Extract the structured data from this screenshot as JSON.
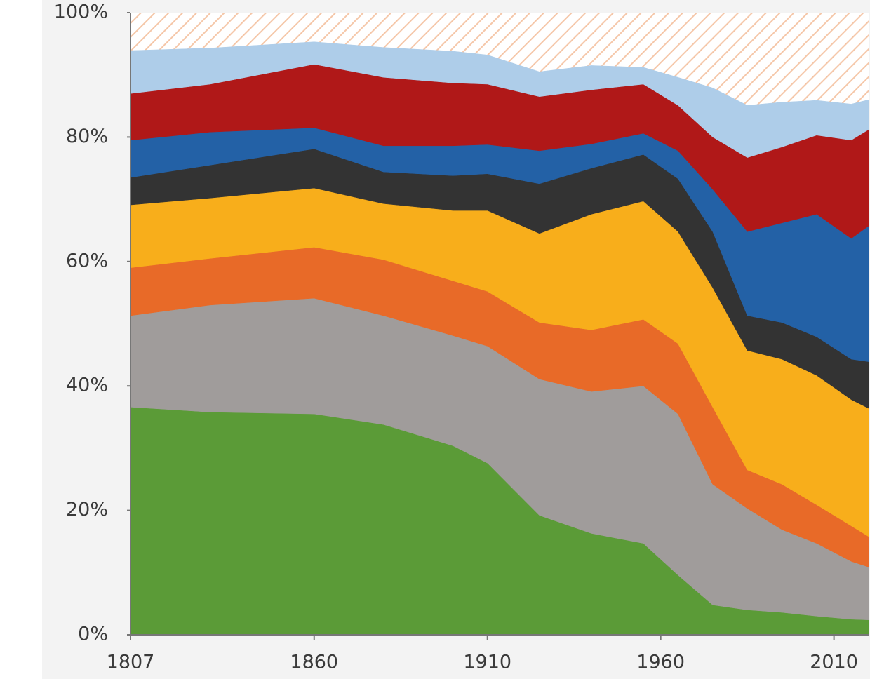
{
  "chart_data": {
    "type": "stacked-area",
    "x": [
      1807,
      1830,
      1860,
      1880,
      1900,
      1910,
      1925,
      1940,
      1955,
      1965,
      1975,
      1985,
      1995,
      2005,
      2015,
      2020
    ],
    "series": [
      {
        "color": "#5b9b37",
        "values": [
          36.6,
          35.8,
          35.5,
          33.8,
          30.4,
          27.6,
          19.2,
          16.3,
          14.7,
          9.6,
          4.8,
          4,
          3.6,
          3,
          2.5,
          2.4
        ]
      },
      {
        "color": "#a09c9b",
        "values": [
          14.7,
          17.2,
          18.6,
          17.5,
          17.7,
          18.8,
          21.9,
          22.8,
          25.3,
          25.9,
          19.4,
          16.3,
          13.3,
          11.7,
          9.3,
          8.5
        ]
      },
      {
        "color": "#e86a28",
        "values": [
          7.7,
          7.5,
          8.2,
          9.0,
          8.8,
          8.8,
          9.1,
          9.9,
          10.7,
          11.3,
          12.4,
          6.2,
          7.3,
          6.2,
          5.7,
          4.9
        ]
      },
      {
        "color": "#f8ae1b",
        "values": [
          10.1,
          9.7,
          9.5,
          9.0,
          11.3,
          13.0,
          14.3,
          18.6,
          19.0,
          18.0,
          19.2,
          19.2,
          20.1,
          20.8,
          20.3,
          20.6
        ]
      },
      {
        "color": "#333333",
        "values": [
          4.4,
          5.3,
          6.3,
          5.1,
          5.6,
          5.9,
          8.0,
          7.4,
          7.5,
          8.5,
          9.0,
          5.6,
          5.9,
          6.2,
          6.5,
          7.5
        ]
      },
      {
        "color": "#2361a6",
        "values": [
          6.0,
          5.3,
          3.4,
          4.2,
          4.8,
          4.7,
          5.3,
          3.9,
          3.4,
          4.5,
          6.8,
          13.5,
          16.0,
          19.7,
          19.4,
          21.8
        ]
      },
      {
        "color": "#b01818",
        "values": [
          7.5,
          7.7,
          10.2,
          11.0,
          10.1,
          9.7,
          8.7,
          8.7,
          7.9,
          7.3,
          8.4,
          11.9,
          12.2,
          12.7,
          15.8,
          15.5
        ]
      },
      {
        "color": "#aecde9",
        "values": [
          6.9,
          5.8,
          3.6,
          4.8,
          5.1,
          4.7,
          4.0,
          3.9,
          2.7,
          4.5,
          7.9,
          8.4,
          7.2,
          5.6,
          5.8,
          4.8
        ]
      }
    ],
    "xlim": [
      1807,
      2020
    ],
    "xticks": [
      1807,
      1860,
      1910,
      1960,
      2010
    ],
    "ylim": [
      0,
      100
    ],
    "yticks": [
      {
        "value": 0,
        "label": "0%"
      },
      {
        "value": 20,
        "label": "20%"
      },
      {
        "value": 40,
        "label": "40%"
      },
      {
        "value": 60,
        "label": "60%"
      },
      {
        "value": 80,
        "label": "80%"
      },
      {
        "value": 100,
        "label": "100%"
      }
    ]
  }
}
